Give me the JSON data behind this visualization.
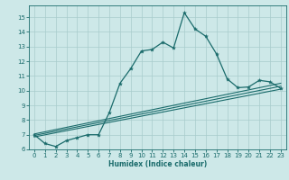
{
  "xlabel": "Humidex (Indice chaleur)",
  "bg_color": "#cde8e8",
  "grid_color": "#a8cccc",
  "line_color": "#1a6b6b",
  "xlim": [
    -0.5,
    23.5
  ],
  "ylim": [
    6,
    15.8
  ],
  "yticks": [
    6,
    7,
    8,
    9,
    10,
    11,
    12,
    13,
    14,
    15
  ],
  "xticks": [
    0,
    1,
    2,
    3,
    4,
    5,
    6,
    7,
    8,
    9,
    10,
    11,
    12,
    13,
    14,
    15,
    16,
    17,
    18,
    19,
    20,
    21,
    22,
    23
  ],
  "line1_x": [
    0,
    1,
    2,
    3,
    4,
    5,
    6,
    7,
    8,
    9,
    10,
    11,
    12,
    13,
    14,
    15,
    16,
    17,
    18,
    19,
    20,
    21,
    22,
    23
  ],
  "line1_y": [
    7.0,
    6.4,
    6.2,
    6.6,
    6.8,
    7.0,
    7.0,
    8.5,
    10.5,
    11.5,
    12.7,
    12.8,
    13.3,
    12.9,
    15.3,
    14.2,
    13.7,
    12.5,
    10.8,
    10.2,
    10.25,
    10.7,
    10.6,
    10.15
  ],
  "line2_x": [
    0,
    23
  ],
  "line2_y": [
    6.85,
    10.1
  ],
  "line3_x": [
    0,
    23
  ],
  "line3_y": [
    6.95,
    10.3
  ],
  "line4_x": [
    0,
    23
  ],
  "line4_y": [
    7.05,
    10.5
  ]
}
